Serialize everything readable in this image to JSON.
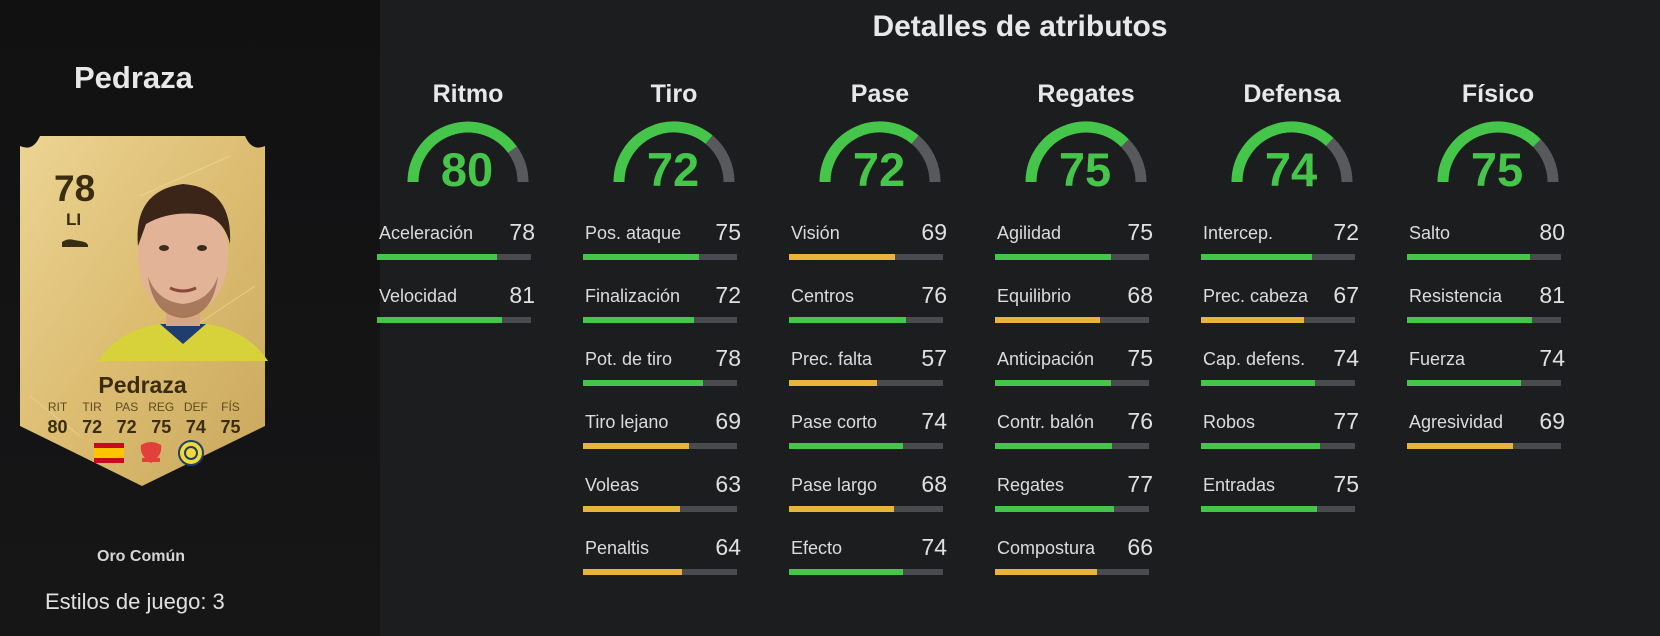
{
  "player": {
    "name": "Pedraza",
    "rating": "78",
    "position": "LI",
    "card_name": "Pedraza",
    "rarity": "Oro Común",
    "playstyles": "Estilos de juego: 3",
    "card_stats": [
      {
        "label": "RIT",
        "value": "80"
      },
      {
        "label": "TIR",
        "value": "72"
      },
      {
        "label": "PAS",
        "value": "72"
      },
      {
        "label": "REG",
        "value": "75"
      },
      {
        "label": "DEF",
        "value": "74"
      },
      {
        "label": "FÍS",
        "value": "75"
      }
    ]
  },
  "title": "Detalles de atributos",
  "colors": {
    "high": "#45c64a",
    "mid": "#e8b43c",
    "track": "#4a4b4e",
    "card_gold": "#e2c47c"
  },
  "categories": [
    {
      "name": "Ritmo",
      "value": 80,
      "stats": [
        {
          "name": "Aceleración",
          "value": 78
        },
        {
          "name": "Velocidad",
          "value": 81
        }
      ]
    },
    {
      "name": "Tiro",
      "value": 72,
      "stats": [
        {
          "name": "Pos. ataque",
          "value": 75
        },
        {
          "name": "Finalización",
          "value": 72
        },
        {
          "name": "Pot. de tiro",
          "value": 78
        },
        {
          "name": "Tiro lejano",
          "value": 69
        },
        {
          "name": "Voleas",
          "value": 63
        },
        {
          "name": "Penaltis",
          "value": 64
        }
      ]
    },
    {
      "name": "Pase",
      "value": 72,
      "stats": [
        {
          "name": "Visión",
          "value": 69
        },
        {
          "name": "Centros",
          "value": 76
        },
        {
          "name": "Prec. falta",
          "value": 57
        },
        {
          "name": "Pase corto",
          "value": 74
        },
        {
          "name": "Pase largo",
          "value": 68
        },
        {
          "name": "Efecto",
          "value": 74
        }
      ]
    },
    {
      "name": "Regates",
      "value": 75,
      "stats": [
        {
          "name": "Agilidad",
          "value": 75
        },
        {
          "name": "Equilibrio",
          "value": 68
        },
        {
          "name": "Anticipación",
          "value": 75
        },
        {
          "name": "Contr. balón",
          "value": 76
        },
        {
          "name": "Regates",
          "value": 77
        },
        {
          "name": "Compostura",
          "value": 66
        }
      ]
    },
    {
      "name": "Defensa",
      "value": 74,
      "stats": [
        {
          "name": "Intercep.",
          "value": 72
        },
        {
          "name": "Prec. cabeza",
          "value": 67
        },
        {
          "name": "Cap. defens.",
          "value": 74
        },
        {
          "name": "Robos",
          "value": 77
        },
        {
          "name": "Entradas",
          "value": 75
        }
      ]
    },
    {
      "name": "Físico",
      "value": 75,
      "stats": [
        {
          "name": "Salto",
          "value": 80
        },
        {
          "name": "Resistencia",
          "value": 81
        },
        {
          "name": "Fuerza",
          "value": 74
        },
        {
          "name": "Agresividad",
          "value": 69
        }
      ]
    }
  ]
}
